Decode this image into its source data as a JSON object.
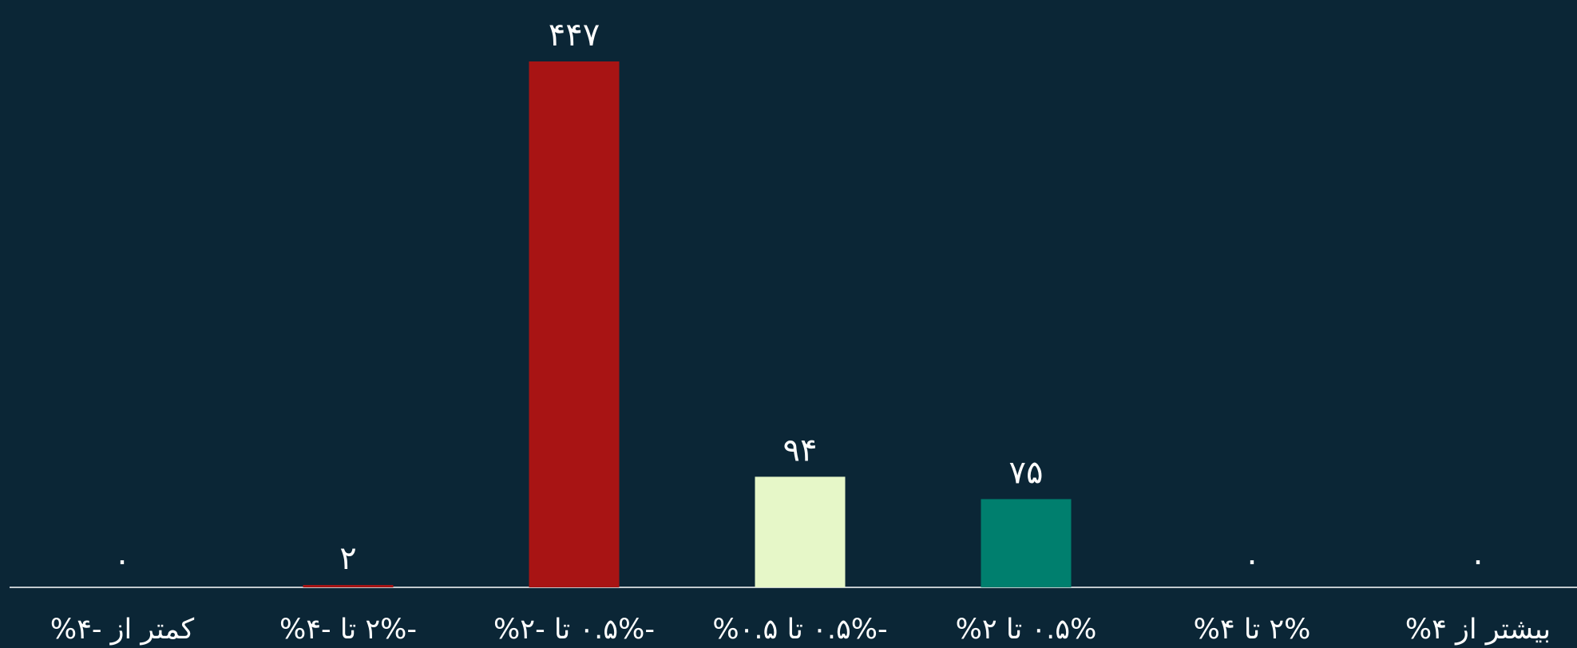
{
  "chart_data": {
    "type": "bar",
    "categories": [
      "کمتر از -۴%",
      "-۲% تا -۴%",
      "-۰.۵% تا -۲%",
      "-۰.۵% تا ۰.۵%",
      "۰.۵% تا ۲%",
      "۲% تا ۴%",
      "بیشتر از ۴%"
    ],
    "values": [
      0,
      2,
      447,
      94,
      75,
      0,
      0
    ],
    "value_labels": [
      "۰",
      "۲",
      "۴۴۷",
      "۹۴",
      "۷۵",
      "۰",
      "۰"
    ],
    "bar_colors": [
      "#a81414",
      "#a81414",
      "#a81414",
      "#e6f7c8",
      "#007f6e",
      "#007f6e",
      "#007f6e"
    ],
    "ylim": [
      0,
      447
    ],
    "grid": false,
    "legend": "none",
    "title": "",
    "xlabel": "",
    "ylabel": ""
  },
  "colors": {
    "background": "#0b2636",
    "axis": "#ffffff",
    "text": "#ffffff"
  }
}
